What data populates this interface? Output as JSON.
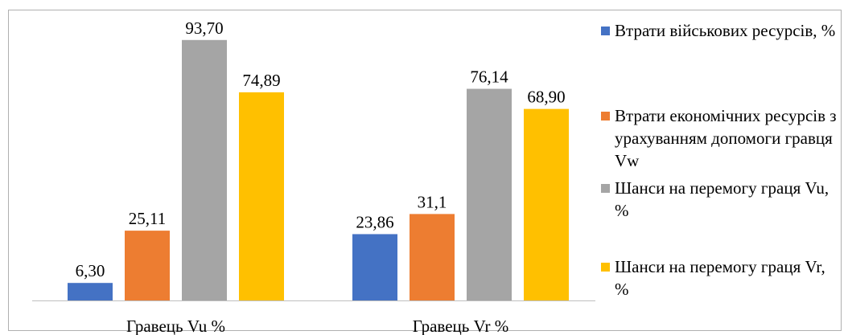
{
  "chart_data": {
    "type": "bar",
    "categories": [
      "Гравець Vu %",
      "Гравець    Vr  %"
    ],
    "series": [
      {
        "name": "Втрати військових ресурсів, %",
        "values": [
          6.3,
          23.86
        ],
        "labels": [
          "6,30",
          "23,86"
        ],
        "color": "#4472c4"
      },
      {
        "name": "Втрати економічних ресурсів з урахуванням допомоги гравця Vw",
        "values": [
          25.11,
          31.1
        ],
        "labels": [
          "25,11",
          "31,1"
        ],
        "color": "#ed7d31"
      },
      {
        "name": "Шанси на перемогу граця Vu, %",
        "values": [
          93.7,
          76.14
        ],
        "labels": [
          "93,70",
          "76,14"
        ],
        "color": "#a5a5a5"
      },
      {
        "name": "Шанси на перемогу граця Vr, %",
        "values": [
          74.89,
          68.9
        ],
        "labels": [
          "74,89",
          "68,90"
        ],
        "color": "#ffc000"
      }
    ],
    "title": "",
    "xlabel": "",
    "ylabel": "",
    "ylim": [
      0,
      100
    ],
    "grid": false,
    "legend": "right"
  }
}
